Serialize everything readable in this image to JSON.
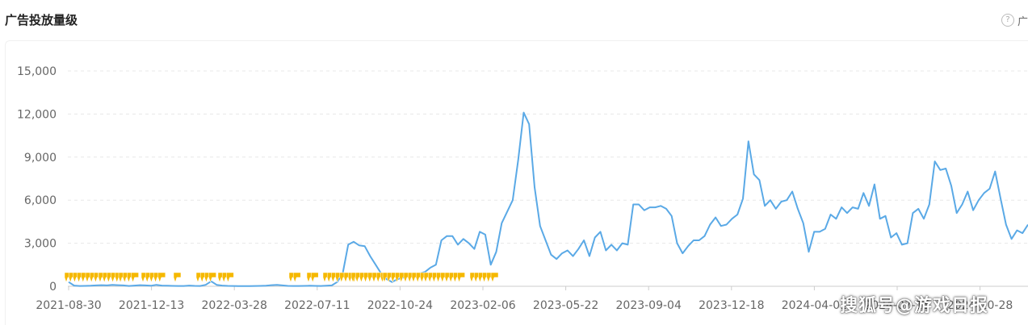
{
  "header": {
    "title": "广告投放量级",
    "help_icon": "question-circle-icon",
    "help_label": "广"
  },
  "watermark": "搜狐号@游戏日报",
  "colors": {
    "line": "#5aa9e6",
    "marker": "#f5b800",
    "grid": "#e8e8e8",
    "axis": "#cccccc",
    "tick_text": "#666666"
  },
  "chart_data": {
    "type": "line",
    "title": "",
    "xlabel": "",
    "ylabel": "",
    "ylim": [
      0,
      15000
    ],
    "yticks": [
      0,
      3000,
      6000,
      9000,
      12000,
      15000
    ],
    "ytick_labels": [
      "0",
      "3,000",
      "6,000",
      "9,000",
      "12,000",
      "15,000"
    ],
    "xtick_labels": [
      "2021-08-30",
      "2021-12-13",
      "2022-03-28",
      "2022-07-11",
      "2022-10-24",
      "2023-02-06",
      "2023-05-22",
      "2023-09-04",
      "2023-12-18",
      "2024-04-01",
      "2024-07-15",
      "2024-10-28"
    ],
    "grid": true,
    "legend": "none",
    "series": [
      {
        "values": [
          300,
          50,
          20,
          30,
          40,
          60,
          80,
          60,
          100,
          80,
          60,
          20,
          50,
          80,
          60,
          40,
          100,
          50,
          40,
          30,
          20,
          20,
          50,
          30,
          20,
          100,
          350,
          100,
          50,
          30,
          20,
          10,
          10,
          10,
          20,
          30,
          40,
          80,
          100,
          60,
          30,
          20,
          20,
          30,
          40,
          30,
          20,
          40,
          60,
          300,
          900,
          2900,
          3100,
          2850,
          2800,
          2100,
          1500,
          900,
          500,
          300,
          500,
          600,
          700,
          800,
          900,
          1000,
          1300,
          1500,
          3200,
          3500,
          3500,
          2900,
          3300,
          3000,
          2600,
          3800,
          3600,
          1500,
          2400,
          4400,
          5200,
          6000,
          8800,
          12100,
          11300,
          6900,
          4200,
          3200,
          2200,
          1900,
          2300,
          2500,
          2100,
          2600,
          3200,
          2100,
          3400,
          3800,
          2500,
          2900,
          2500,
          3000,
          2900,
          5700,
          5700,
          5300,
          5500,
          5500,
          5600,
          5400,
          4900,
          3000,
          2300,
          2800,
          3200,
          3200,
          3500,
          4300,
          4800,
          4200,
          4300,
          4700,
          5000,
          6100,
          10100,
          7800,
          7400,
          5600,
          6000,
          5400,
          5900,
          6000,
          6600,
          5400,
          4400,
          2400,
          3800,
          3800,
          4000,
          5000,
          4700,
          5500,
          5100,
          5500,
          5400,
          6500,
          5600,
          7100,
          4700,
          4900,
          3400,
          3700,
          2900,
          3000,
          5100,
          5400,
          4700,
          5700,
          8700,
          8100,
          8200,
          7000,
          5100,
          5700,
          6600,
          5300,
          6000,
          6500,
          6800,
          8000,
          6100,
          4300,
          3300,
          3900,
          3700,
          4300
        ]
      }
    ],
    "markers": {
      "description": "flag markers along the zero line",
      "count": 82
    }
  }
}
